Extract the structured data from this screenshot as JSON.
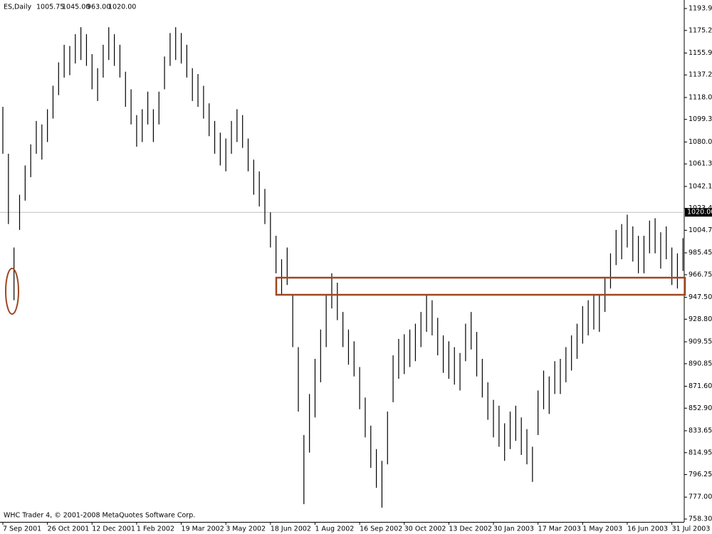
{
  "chart_data": {
    "type": "ohlc",
    "title": "ES,Daily",
    "header_values": [
      "1005.75",
      "1045.00",
      "963.00",
      "1020.00"
    ],
    "footer": "WHC Trader 4, © 2001-2008 MetaQuotes Software Corp.",
    "color": "#000000",
    "grid": false,
    "categories": [
      "7 Sep 2001",
      null,
      null,
      null,
      null,
      null,
      null,
      null,
      "26 Oct 2001",
      null,
      null,
      null,
      null,
      null,
      null,
      null,
      "12 Dec 2001",
      null,
      null,
      null,
      null,
      null,
      null,
      null,
      "1 Feb 2002",
      null,
      null,
      null,
      null,
      null,
      null,
      null,
      "19 Mar 2002",
      null,
      null,
      null,
      null,
      null,
      null,
      null,
      "3 May 2002",
      null,
      null,
      null,
      null,
      null,
      null,
      null,
      "18 Jun 2002",
      null,
      null,
      null,
      null,
      null,
      null,
      null,
      "1 Aug 2002",
      null,
      null,
      null,
      null,
      null,
      null,
      null,
      "16 Sep 2002",
      null,
      null,
      null,
      null,
      null,
      null,
      null,
      "30 Oct 2002",
      null,
      null,
      null,
      null,
      null,
      null,
      null,
      "13 Dec 2002",
      null,
      null,
      null,
      null,
      null,
      null,
      null,
      "30 Jan 2003",
      null,
      null,
      null,
      null,
      null,
      null,
      null,
      "17 Mar 2003",
      null,
      null,
      null,
      null,
      null,
      null,
      null,
      "1 May 2003",
      null,
      null,
      null,
      null,
      null,
      null,
      null,
      "16 Jun 2003",
      null,
      null,
      null,
      null,
      null,
      null,
      null,
      "31 Jul 2003",
      null,
      null
    ],
    "high": [
      1110,
      1070,
      990,
      1035,
      1060,
      1078,
      1098,
      1095,
      1108,
      1128,
      1148,
      1163,
      1162,
      1172,
      1178,
      1172,
      1155,
      1143,
      1163,
      1178,
      1172,
      1163,
      1140,
      1125,
      1103,
      1108,
      1123,
      1108,
      1123,
      1153,
      1173,
      1178,
      1173,
      1163,
      1143,
      1138,
      1128,
      1113,
      1098,
      1088,
      1083,
      1098,
      1108,
      1103,
      1083,
      1065,
      1055,
      1040,
      1020,
      1000,
      980,
      990,
      950,
      905,
      830,
      865,
      895,
      920,
      950,
      968,
      960,
      935,
      920,
      910,
      888,
      862,
      838,
      818,
      808,
      850,
      898,
      912,
      916,
      920,
      925,
      935,
      950,
      945,
      930,
      915,
      910,
      905,
      900,
      925,
      935,
      918,
      895,
      875,
      860,
      855,
      840,
      850,
      855,
      845,
      835,
      820,
      868,
      885,
      880,
      893,
      895,
      905,
      915,
      925,
      940,
      945,
      950,
      950,
      965,
      985,
      1005,
      1010,
      1018,
      1008,
      1000,
      1000,
      1013,
      1015,
      1003,
      1008,
      990,
      985,
      998
    ],
    "low": [
      1070,
      1010,
      945,
      1005,
      1030,
      1050,
      1070,
      1065,
      1080,
      1100,
      1120,
      1135,
      1137,
      1147,
      1150,
      1145,
      1125,
      1115,
      1135,
      1150,
      1145,
      1135,
      1110,
      1095,
      1076,
      1080,
      1095,
      1080,
      1095,
      1125,
      1145,
      1150,
      1147,
      1135,
      1115,
      1110,
      1100,
      1085,
      1070,
      1060,
      1055,
      1070,
      1080,
      1075,
      1055,
      1035,
      1025,
      1010,
      990,
      968,
      950,
      958,
      905,
      850,
      771,
      815,
      845,
      875,
      905,
      938,
      928,
      905,
      890,
      880,
      852,
      828,
      802,
      785,
      768,
      805,
      858,
      878,
      882,
      888,
      893,
      905,
      918,
      915,
      898,
      883,
      878,
      873,
      868,
      893,
      903,
      880,
      862,
      843,
      828,
      820,
      808,
      818,
      825,
      813,
      805,
      790,
      830,
      852,
      848,
      865,
      865,
      875,
      885,
      895,
      908,
      915,
      920,
      918,
      935,
      955,
      975,
      980,
      990,
      978,
      968,
      968,
      985,
      985,
      972,
      980,
      958,
      955,
      970
    ],
    "ylim": [
      755.87,
      1201.19
    ],
    "yticks": [
      {
        "value": 1193.9,
        "label": "1193.90"
      },
      {
        "value": 1175.2,
        "label": "1175.20"
      },
      {
        "value": 1155.95,
        "label": "1155.95"
      },
      {
        "value": 1137.25,
        "label": "1137.25"
      },
      {
        "value": 1118,
        "label": "1118.00"
      },
      {
        "value": 1099.3,
        "label": "1099.30"
      },
      {
        "value": 1080.05,
        "label": "1080.05"
      },
      {
        "value": 1061.35,
        "label": "1061.35"
      },
      {
        "value": 1042.1,
        "label": "1042.10"
      },
      {
        "value": 1023.4,
        "label": "1023.40"
      },
      {
        "value": 1004.7,
        "label": "1004.70"
      },
      {
        "value": 985.45,
        "label": "985.45"
      },
      {
        "value": 966.75,
        "label": "966.75"
      },
      {
        "value": 947.5,
        "label": "947.50"
      },
      {
        "value": 928.8,
        "label": "928.80"
      },
      {
        "value": 909.55,
        "label": "909.55"
      },
      {
        "value": 890.85,
        "label": "890.85"
      },
      {
        "value": 871.6,
        "label": "871.60"
      },
      {
        "value": 852.9,
        "label": "852.90"
      },
      {
        "value": 833.65,
        "label": "833.65"
      },
      {
        "value": 814.95,
        "label": "814.95"
      },
      {
        "value": 796.25,
        "label": "796.25"
      },
      {
        "value": 777,
        "label": "777.00"
      },
      {
        "value": 758.3,
        "label": "758.30"
      }
    ],
    "current_price": {
      "value": 1020,
      "label": "1020.00"
    }
  }
}
